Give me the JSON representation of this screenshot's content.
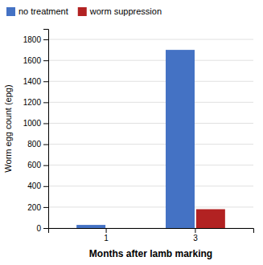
{
  "chart_data": {
    "type": "bar",
    "categories": [
      "1",
      "3"
    ],
    "series": [
      {
        "name": "no treatment",
        "color": "#4472C4",
        "values": [
          30,
          1700
        ]
      },
      {
        "name": "worm suppression",
        "color": "#B22222",
        "values": [
          null,
          180
        ]
      }
    ],
    "xlabel": "Months after lamb marking",
    "ylabel": "Worm egg count (epg)",
    "ylim": [
      0,
      1900
    ],
    "yticks": [
      0,
      200,
      400,
      600,
      800,
      1000,
      1200,
      1400,
      1600,
      1800
    ],
    "grid": true,
    "legend": "upper left"
  }
}
